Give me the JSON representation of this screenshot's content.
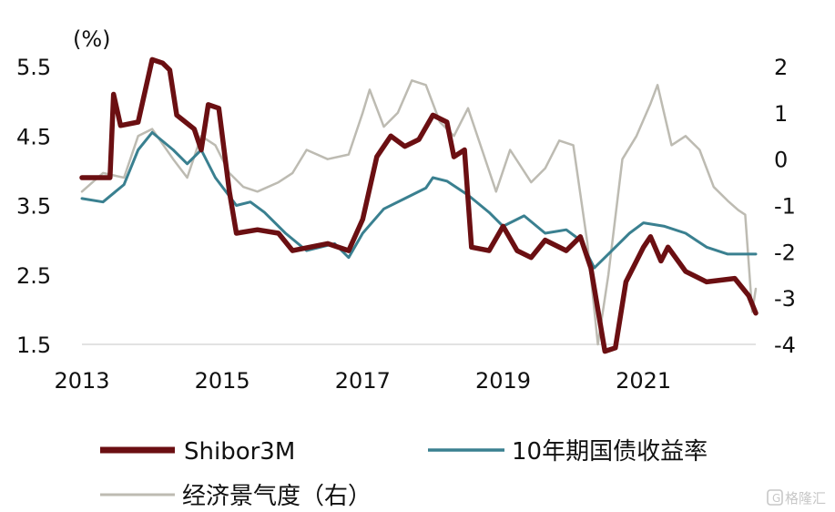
{
  "chart_data": {
    "type": "line",
    "y_unit_label": "(%)",
    "left_axis": {
      "ylim": [
        1.5,
        5.5
      ],
      "ticks": [
        "5.5",
        "4.5",
        "3.5",
        "2.5",
        "1.5"
      ]
    },
    "right_axis": {
      "ylim": [
        -4,
        2
      ],
      "ticks": [
        "2",
        "1",
        "0",
        "-1",
        "-2",
        "-3",
        "-4"
      ]
    },
    "x_axis": {
      "xlim": [
        2013.0,
        2022.6
      ],
      "ticks": [
        "2013",
        "2015",
        "2017",
        "2019",
        "2021"
      ]
    },
    "grid": false,
    "legend_placement": "bottom",
    "series": [
      {
        "name": "Shibor3M",
        "axis": "left",
        "color": "#6b0f12",
        "points": [
          [
            2013.0,
            3.9
          ],
          [
            2013.4,
            3.9
          ],
          [
            2013.45,
            5.1
          ],
          [
            2013.55,
            4.65
          ],
          [
            2013.8,
            4.7
          ],
          [
            2014.0,
            5.6
          ],
          [
            2014.15,
            5.55
          ],
          [
            2014.25,
            5.45
          ],
          [
            2014.35,
            4.8
          ],
          [
            2014.6,
            4.6
          ],
          [
            2014.7,
            4.3
          ],
          [
            2014.8,
            4.95
          ],
          [
            2014.95,
            4.9
          ],
          [
            2015.1,
            3.7
          ],
          [
            2015.2,
            3.1
          ],
          [
            2015.5,
            3.15
          ],
          [
            2015.8,
            3.1
          ],
          [
            2016.0,
            2.85
          ],
          [
            2016.5,
            2.95
          ],
          [
            2016.8,
            2.85
          ],
          [
            2017.0,
            3.3
          ],
          [
            2017.2,
            4.2
          ],
          [
            2017.4,
            4.5
          ],
          [
            2017.6,
            4.35
          ],
          [
            2017.8,
            4.45
          ],
          [
            2018.0,
            4.8
          ],
          [
            2018.2,
            4.7
          ],
          [
            2018.3,
            4.2
          ],
          [
            2018.45,
            4.3
          ],
          [
            2018.55,
            2.9
          ],
          [
            2018.8,
            2.85
          ],
          [
            2019.0,
            3.2
          ],
          [
            2019.2,
            2.85
          ],
          [
            2019.4,
            2.75
          ],
          [
            2019.6,
            3.0
          ],
          [
            2019.9,
            2.85
          ],
          [
            2020.1,
            3.05
          ],
          [
            2020.25,
            2.6
          ],
          [
            2020.45,
            1.4
          ],
          [
            2020.6,
            1.45
          ],
          [
            2020.75,
            2.4
          ],
          [
            2021.0,
            2.9
          ],
          [
            2021.1,
            3.05
          ],
          [
            2021.25,
            2.7
          ],
          [
            2021.35,
            2.9
          ],
          [
            2021.6,
            2.55
          ],
          [
            2021.9,
            2.4
          ],
          [
            2022.3,
            2.45
          ],
          [
            2022.5,
            2.2
          ],
          [
            2022.6,
            1.95
          ]
        ]
      },
      {
        "name": "10年期国债收益率",
        "axis": "left",
        "color": "#3a8090",
        "points": [
          [
            2013.0,
            3.6
          ],
          [
            2013.3,
            3.55
          ],
          [
            2013.6,
            3.8
          ],
          [
            2013.8,
            4.3
          ],
          [
            2014.0,
            4.55
          ],
          [
            2014.3,
            4.3
          ],
          [
            2014.5,
            4.1
          ],
          [
            2014.7,
            4.3
          ],
          [
            2014.9,
            3.9
          ],
          [
            2015.2,
            3.5
          ],
          [
            2015.4,
            3.55
          ],
          [
            2015.6,
            3.4
          ],
          [
            2015.9,
            3.1
          ],
          [
            2016.2,
            2.85
          ],
          [
            2016.6,
            2.95
          ],
          [
            2016.8,
            2.75
          ],
          [
            2017.0,
            3.1
          ],
          [
            2017.3,
            3.45
          ],
          [
            2017.6,
            3.6
          ],
          [
            2017.9,
            3.75
          ],
          [
            2018.0,
            3.9
          ],
          [
            2018.2,
            3.85
          ],
          [
            2018.5,
            3.65
          ],
          [
            2018.8,
            3.4
          ],
          [
            2019.0,
            3.2
          ],
          [
            2019.3,
            3.35
          ],
          [
            2019.6,
            3.1
          ],
          [
            2019.9,
            3.15
          ],
          [
            2020.1,
            3.0
          ],
          [
            2020.3,
            2.6
          ],
          [
            2020.5,
            2.8
          ],
          [
            2020.8,
            3.1
          ],
          [
            2021.0,
            3.25
          ],
          [
            2021.3,
            3.2
          ],
          [
            2021.6,
            3.1
          ],
          [
            2021.9,
            2.9
          ],
          [
            2022.2,
            2.8
          ],
          [
            2022.6,
            2.8
          ]
        ]
      },
      {
        "name": "经济景气度（右）",
        "axis": "right",
        "color": "#bdbbb2",
        "points": [
          [
            2013.0,
            -0.7
          ],
          [
            2013.3,
            -0.3
          ],
          [
            2013.6,
            -0.4
          ],
          [
            2013.8,
            0.5
          ],
          [
            2014.0,
            0.65
          ],
          [
            2014.3,
            0.0
          ],
          [
            2014.5,
            -0.4
          ],
          [
            2014.7,
            0.5
          ],
          [
            2014.9,
            0.3
          ],
          [
            2015.1,
            -0.3
          ],
          [
            2015.3,
            -0.6
          ],
          [
            2015.5,
            -0.7
          ],
          [
            2015.8,
            -0.5
          ],
          [
            2016.0,
            -0.3
          ],
          [
            2016.2,
            0.2
          ],
          [
            2016.5,
            0.0
          ],
          [
            2016.8,
            0.1
          ],
          [
            2017.0,
            1.0
          ],
          [
            2017.1,
            1.5
          ],
          [
            2017.3,
            0.7
          ],
          [
            2017.5,
            1.0
          ],
          [
            2017.7,
            1.7
          ],
          [
            2017.9,
            1.6
          ],
          [
            2018.1,
            0.8
          ],
          [
            2018.3,
            0.5
          ],
          [
            2018.5,
            1.1
          ],
          [
            2018.7,
            0.2
          ],
          [
            2018.9,
            -0.7
          ],
          [
            2019.1,
            0.2
          ],
          [
            2019.4,
            -0.5
          ],
          [
            2019.6,
            -0.2
          ],
          [
            2019.8,
            0.4
          ],
          [
            2020.0,
            0.3
          ],
          [
            2020.2,
            -1.8
          ],
          [
            2020.35,
            -4.0
          ],
          [
            2020.5,
            -2.5
          ],
          [
            2020.7,
            0.0
          ],
          [
            2020.9,
            0.5
          ],
          [
            2021.1,
            1.2
          ],
          [
            2021.2,
            1.6
          ],
          [
            2021.4,
            0.3
          ],
          [
            2021.6,
            0.5
          ],
          [
            2021.8,
            0.2
          ],
          [
            2022.0,
            -0.6
          ],
          [
            2022.2,
            -0.9
          ],
          [
            2022.35,
            -1.1
          ],
          [
            2022.45,
            -1.2
          ],
          [
            2022.55,
            -3.3
          ],
          [
            2022.6,
            -2.8
          ]
        ]
      }
    ]
  },
  "legend": {
    "items": [
      {
        "label": "Shibor3M",
        "color": "#6b0f12"
      },
      {
        "label": "10年期国债收益率",
        "color": "#3a8090"
      },
      {
        "label": "经济景气度（右）",
        "color": "#bdbbb2"
      }
    ]
  },
  "watermark": {
    "text": "格隆汇"
  }
}
